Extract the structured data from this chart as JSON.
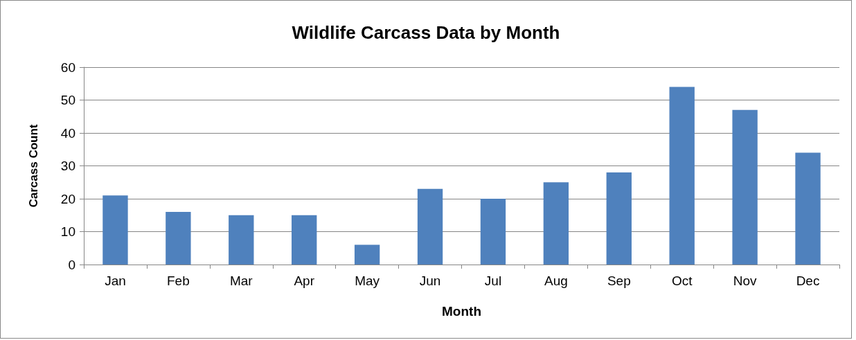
{
  "chart_data": {
    "type": "bar",
    "title": "Wildlife Carcass Data by Month",
    "xlabel": "Month",
    "ylabel": "Carcass Count",
    "categories": [
      "Jan",
      "Feb",
      "Mar",
      "Apr",
      "May",
      "Jun",
      "Jul",
      "Aug",
      "Sep",
      "Oct",
      "Nov",
      "Dec"
    ],
    "values": [
      21,
      16,
      15,
      15,
      6,
      23,
      20,
      25,
      28,
      54,
      47,
      34
    ],
    "color": "#4f81bd",
    "ylim": [
      0,
      60
    ],
    "yticks": [
      0,
      10,
      20,
      30,
      40,
      50,
      60
    ],
    "grid": "y"
  }
}
